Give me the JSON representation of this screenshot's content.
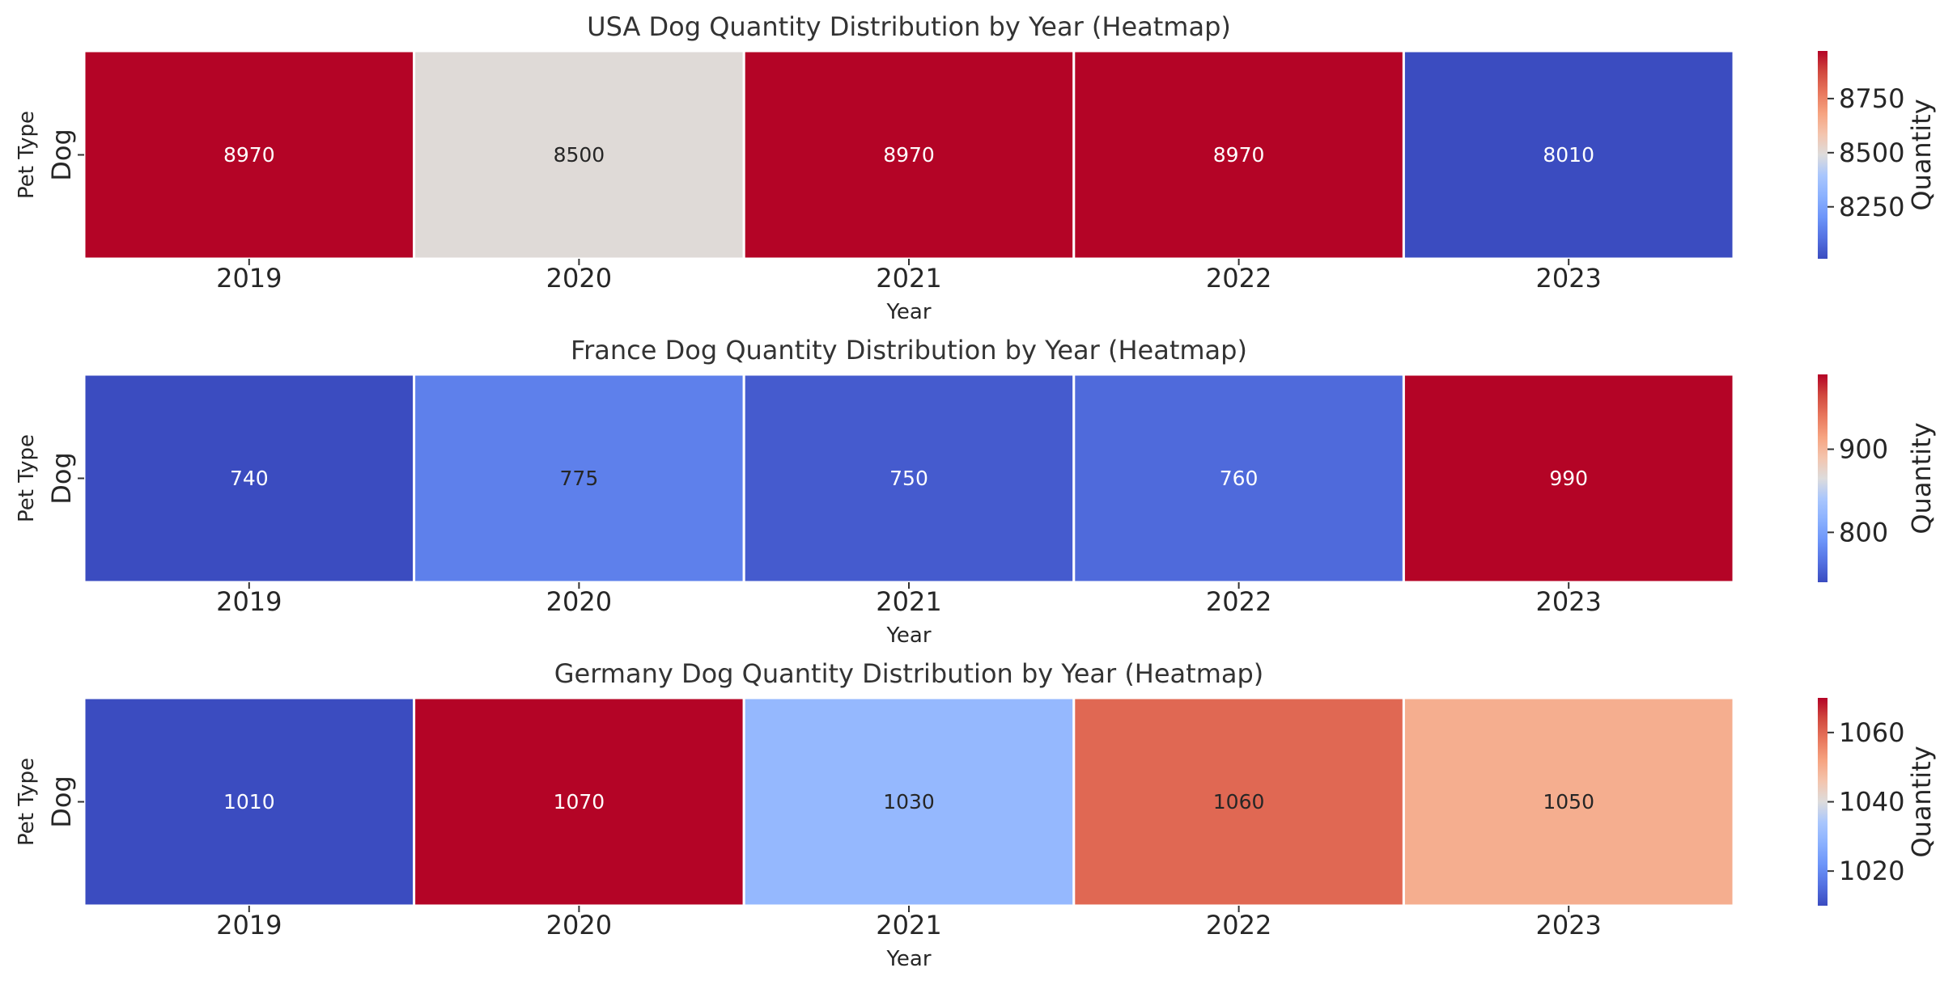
{
  "chart_data": [
    {
      "type": "heatmap",
      "title": "USA Dog Quantity Distribution by Year (Heatmap)",
      "xlabel": "Year",
      "ylabel": "Pet Type",
      "rows": [
        "Dog"
      ],
      "columns": [
        "2019",
        "2020",
        "2021",
        "2022",
        "2023"
      ],
      "values": [
        [
          8970,
          8500,
          8970,
          8970,
          8010
        ]
      ],
      "colormap": "coolwarm",
      "vmin": 8010,
      "vmax": 8970,
      "colorbar": {
        "label": "Quantity",
        "ticks": [
          8250,
          8500,
          8750
        ]
      }
    },
    {
      "type": "heatmap",
      "title": "France Dog Quantity Distribution by Year (Heatmap)",
      "xlabel": "Year",
      "ylabel": "Pet Type",
      "rows": [
        "Dog"
      ],
      "columns": [
        "2019",
        "2020",
        "2021",
        "2022",
        "2023"
      ],
      "values": [
        [
          740,
          775,
          750,
          760,
          990
        ]
      ],
      "colormap": "coolwarm",
      "vmin": 740,
      "vmax": 990,
      "colorbar": {
        "label": "Quantity",
        "ticks": [
          800,
          900
        ]
      }
    },
    {
      "type": "heatmap",
      "title": "Germany Dog Quantity Distribution by Year (Heatmap)",
      "xlabel": "Year",
      "ylabel": "Pet Type",
      "rows": [
        "Dog"
      ],
      "columns": [
        "2019",
        "2020",
        "2021",
        "2022",
        "2023"
      ],
      "values": [
        [
          1010,
          1070,
          1030,
          1060,
          1050
        ]
      ],
      "colormap": "coolwarm",
      "vmin": 1010,
      "vmax": 1070,
      "colorbar": {
        "label": "Quantity",
        "ticks": [
          1020,
          1040,
          1060
        ]
      }
    }
  ]
}
